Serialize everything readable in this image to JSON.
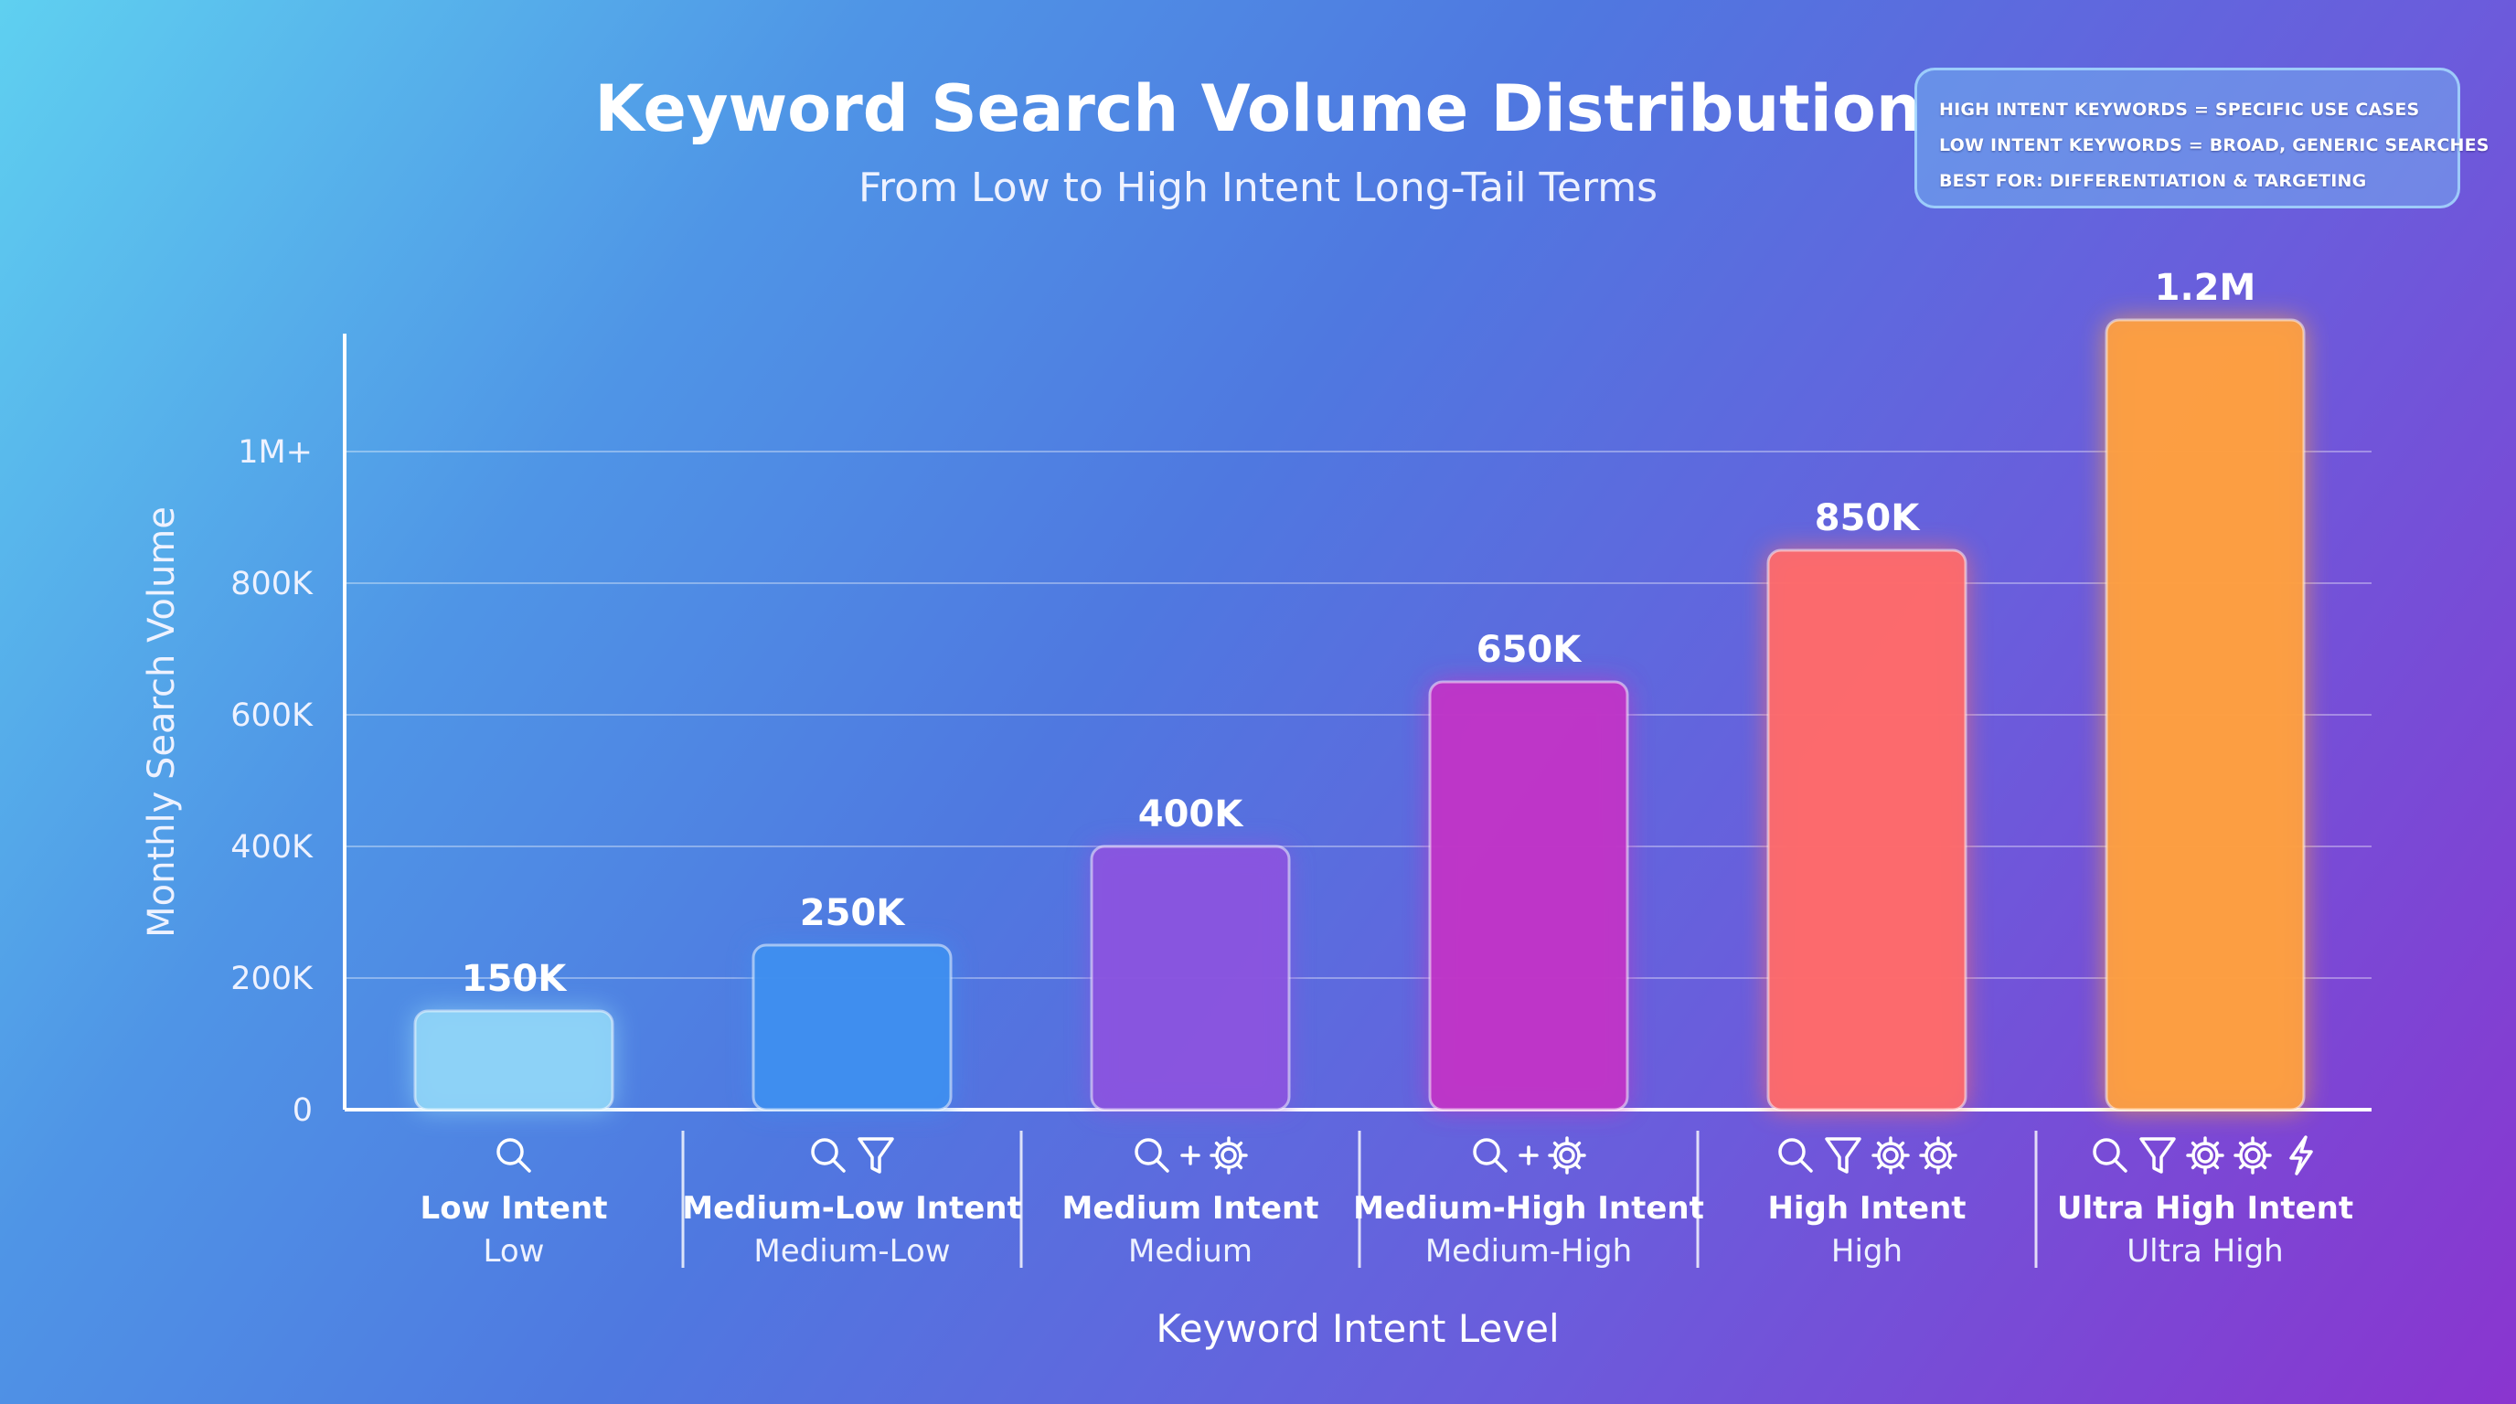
{
  "chart_data": {
    "type": "bar",
    "title": "Keyword Search Volume Distribution",
    "subtitle": "From Low to High Intent Long-Tail Terms",
    "xlabel": "Keyword Intent Level",
    "ylabel": "Monthly Search Volume",
    "ylim": [
      0,
      1200000
    ],
    "yticks": [
      {
        "value": 0,
        "label": "0"
      },
      {
        "value": 200000,
        "label": "200K"
      },
      {
        "value": 400000,
        "label": "400K"
      },
      {
        "value": 600000,
        "label": "600K"
      },
      {
        "value": 800000,
        "label": "800K"
      },
      {
        "value": 1000000,
        "label": "1M+"
      }
    ],
    "grid": true,
    "categories": [
      "Low Intent",
      "Medium-Low Intent",
      "Medium Intent",
      "Medium-High Intent",
      "High Intent",
      "Ultra High Intent"
    ],
    "sublabels": [
      "Low",
      "Medium-Low",
      "Medium",
      "Medium-High",
      "High",
      "Ultra High"
    ],
    "values": [
      150000,
      250000,
      400000,
      650000,
      850000,
      1200000
    ],
    "data_labels": [
      "150K",
      "250K",
      "400K",
      "650K",
      "850K",
      "1.2M"
    ],
    "colors": [
      "#8fd4f8",
      "#3f8ff0",
      "#8a55e0",
      "#c035c8",
      "#ff6b6b",
      "#ffa040"
    ],
    "icons": [
      [
        "search-icon"
      ],
      [
        "search-icon",
        "filter-icon"
      ],
      [
        "search-icon",
        "plus-icon",
        "gear-icon"
      ],
      [
        "search-icon",
        "plus-icon",
        "gear-icon"
      ],
      [
        "search-icon",
        "filter-icon",
        "gear-icon",
        "gear-icon"
      ],
      [
        "search-icon",
        "filter-icon",
        "gear-icon",
        "gear-icon",
        "lightning-icon"
      ]
    ]
  },
  "legend": {
    "lines": [
      "HIGH INTENT KEYWORDS = SPECIFIC USE CASES",
      "LOW INTENT KEYWORDS = BROAD, GENERIC SEARCHES",
      "BEST FOR: DIFFERENTIATION & TARGETING"
    ]
  }
}
